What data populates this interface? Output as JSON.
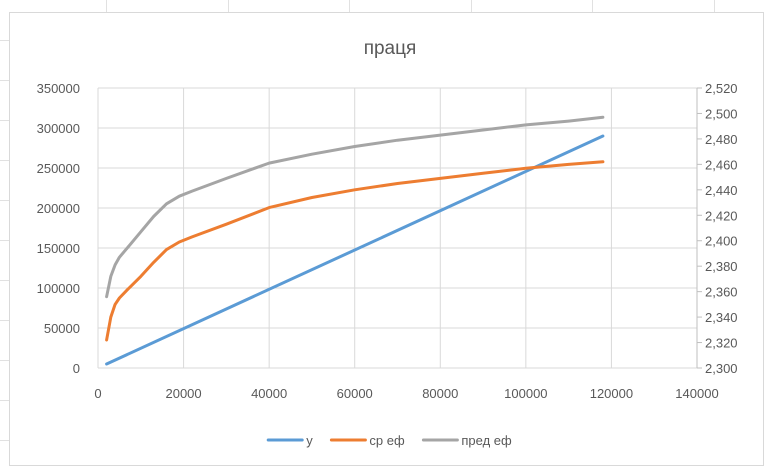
{
  "chart_data": {
    "type": "line",
    "title": "праця",
    "xlabel": "",
    "ylabel": "",
    "xlim": [
      0,
      140000
    ],
    "x_ticks": [
      "0",
      "20000",
      "40000",
      "60000",
      "80000",
      "100000",
      "120000",
      "140000"
    ],
    "ylim_left": [
      0,
      350000
    ],
    "y_left_ticks": [
      "0",
      "50000",
      "100000",
      "150000",
      "200000",
      "250000",
      "300000",
      "350000"
    ],
    "ylim_right": [
      2.3,
      2.52
    ],
    "y_right_ticks": [
      "2,300",
      "2,320",
      "2,340",
      "2,360",
      "2,380",
      "2,400",
      "2,420",
      "2,440",
      "2,460",
      "2,480",
      "2,500",
      "2,520"
    ],
    "grid": true,
    "legend_position": "bottom",
    "series": [
      {
        "name": "у",
        "color": "#5b9bd5",
        "axis": "left",
        "x": [
          2000,
          118000
        ],
        "y": [
          5000,
          290000
        ]
      },
      {
        "name": "ср еф",
        "color": "#ed7d31",
        "axis": "right",
        "x": [
          2000,
          3000,
          4000,
          5000,
          7000,
          10000,
          13000,
          16000,
          19000,
          22000,
          30000,
          40000,
          50000,
          60000,
          70000,
          80000,
          90000,
          100000,
          110000,
          118000
        ],
        "y": [
          2.322,
          2.34,
          2.35,
          2.355,
          2.362,
          2.372,
          2.383,
          2.393,
          2.399,
          2.403,
          2.413,
          2.426,
          2.434,
          2.44,
          2.445,
          2.449,
          2.453,
          2.457,
          2.46,
          2.462
        ]
      },
      {
        "name": "пред еф",
        "color": "#a5a5a5",
        "axis": "right",
        "x": [
          2000,
          3000,
          4000,
          5000,
          7000,
          10000,
          13000,
          16000,
          19000,
          22000,
          30000,
          40000,
          50000,
          60000,
          70000,
          80000,
          90000,
          100000,
          110000,
          118000
        ],
        "y": [
          2.356,
          2.372,
          2.381,
          2.387,
          2.395,
          2.407,
          2.419,
          2.429,
          2.435,
          2.439,
          2.449,
          2.461,
          2.468,
          2.474,
          2.479,
          2.483,
          2.487,
          2.491,
          2.494,
          2.497
        ]
      }
    ]
  }
}
